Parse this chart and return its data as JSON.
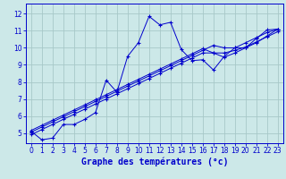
{
  "title": "Graphe des températures (°c)",
  "bg_color": "#cce8e8",
  "grid_color": "#a8c8c8",
  "line_color": "#0000cc",
  "xlim": [
    -0.5,
    23.5
  ],
  "ylim": [
    4.4,
    12.6
  ],
  "xticks": [
    0,
    1,
    2,
    3,
    4,
    5,
    6,
    7,
    8,
    9,
    10,
    11,
    12,
    13,
    14,
    15,
    16,
    17,
    18,
    19,
    20,
    21,
    22,
    23
  ],
  "yticks": [
    5,
    6,
    7,
    8,
    9,
    10,
    11,
    12
  ],
  "wavy_x": [
    0,
    1,
    2,
    3,
    4,
    5,
    6,
    7,
    8,
    9,
    10,
    11,
    12,
    13,
    14,
    15,
    16,
    17,
    18,
    19,
    20,
    21,
    22,
    23
  ],
  "wavy_y": [
    5.1,
    4.6,
    4.7,
    5.5,
    5.5,
    5.8,
    6.2,
    8.1,
    7.4,
    9.5,
    10.3,
    11.85,
    11.35,
    11.5,
    9.9,
    9.25,
    9.3,
    8.7,
    9.5,
    10.0,
    10.0,
    10.55,
    11.05,
    11.1
  ],
  "line2_x": [
    0,
    1,
    2,
    3,
    4,
    5,
    6,
    7,
    8,
    9,
    10,
    11,
    12,
    13,
    14,
    15,
    16,
    17,
    18,
    19,
    20,
    21,
    22,
    23
  ],
  "line2_y": [
    5.05,
    5.35,
    5.65,
    5.95,
    6.25,
    6.55,
    6.85,
    7.15,
    7.45,
    7.75,
    8.05,
    8.35,
    8.65,
    8.95,
    9.25,
    9.55,
    9.85,
    10.15,
    10.0,
    10.0,
    10.3,
    10.6,
    10.9,
    11.1
  ],
  "line3_x": [
    0,
    1,
    2,
    3,
    4,
    5,
    6,
    7,
    8,
    9,
    10,
    11,
    12,
    13,
    14,
    15,
    16,
    17,
    18,
    19,
    20,
    21,
    22,
    23
  ],
  "line3_y": [
    4.9,
    5.2,
    5.5,
    5.8,
    6.1,
    6.4,
    6.7,
    7.0,
    7.3,
    7.6,
    7.9,
    8.2,
    8.5,
    8.8,
    9.1,
    9.4,
    9.7,
    9.7,
    9.7,
    9.85,
    10.05,
    10.35,
    10.65,
    10.95
  ],
  "line4_x": [
    0,
    1,
    2,
    3,
    4,
    5,
    6,
    7,
    8,
    9,
    10,
    11,
    12,
    13,
    14,
    15,
    16,
    17,
    18,
    19,
    20,
    21,
    22,
    23
  ],
  "line4_y": [
    5.15,
    5.45,
    5.75,
    6.05,
    6.35,
    6.65,
    6.95,
    7.25,
    7.55,
    7.85,
    8.15,
    8.45,
    8.75,
    9.05,
    9.35,
    9.65,
    9.95,
    9.7,
    9.45,
    9.7,
    10.0,
    10.3,
    10.7,
    11.1
  ]
}
